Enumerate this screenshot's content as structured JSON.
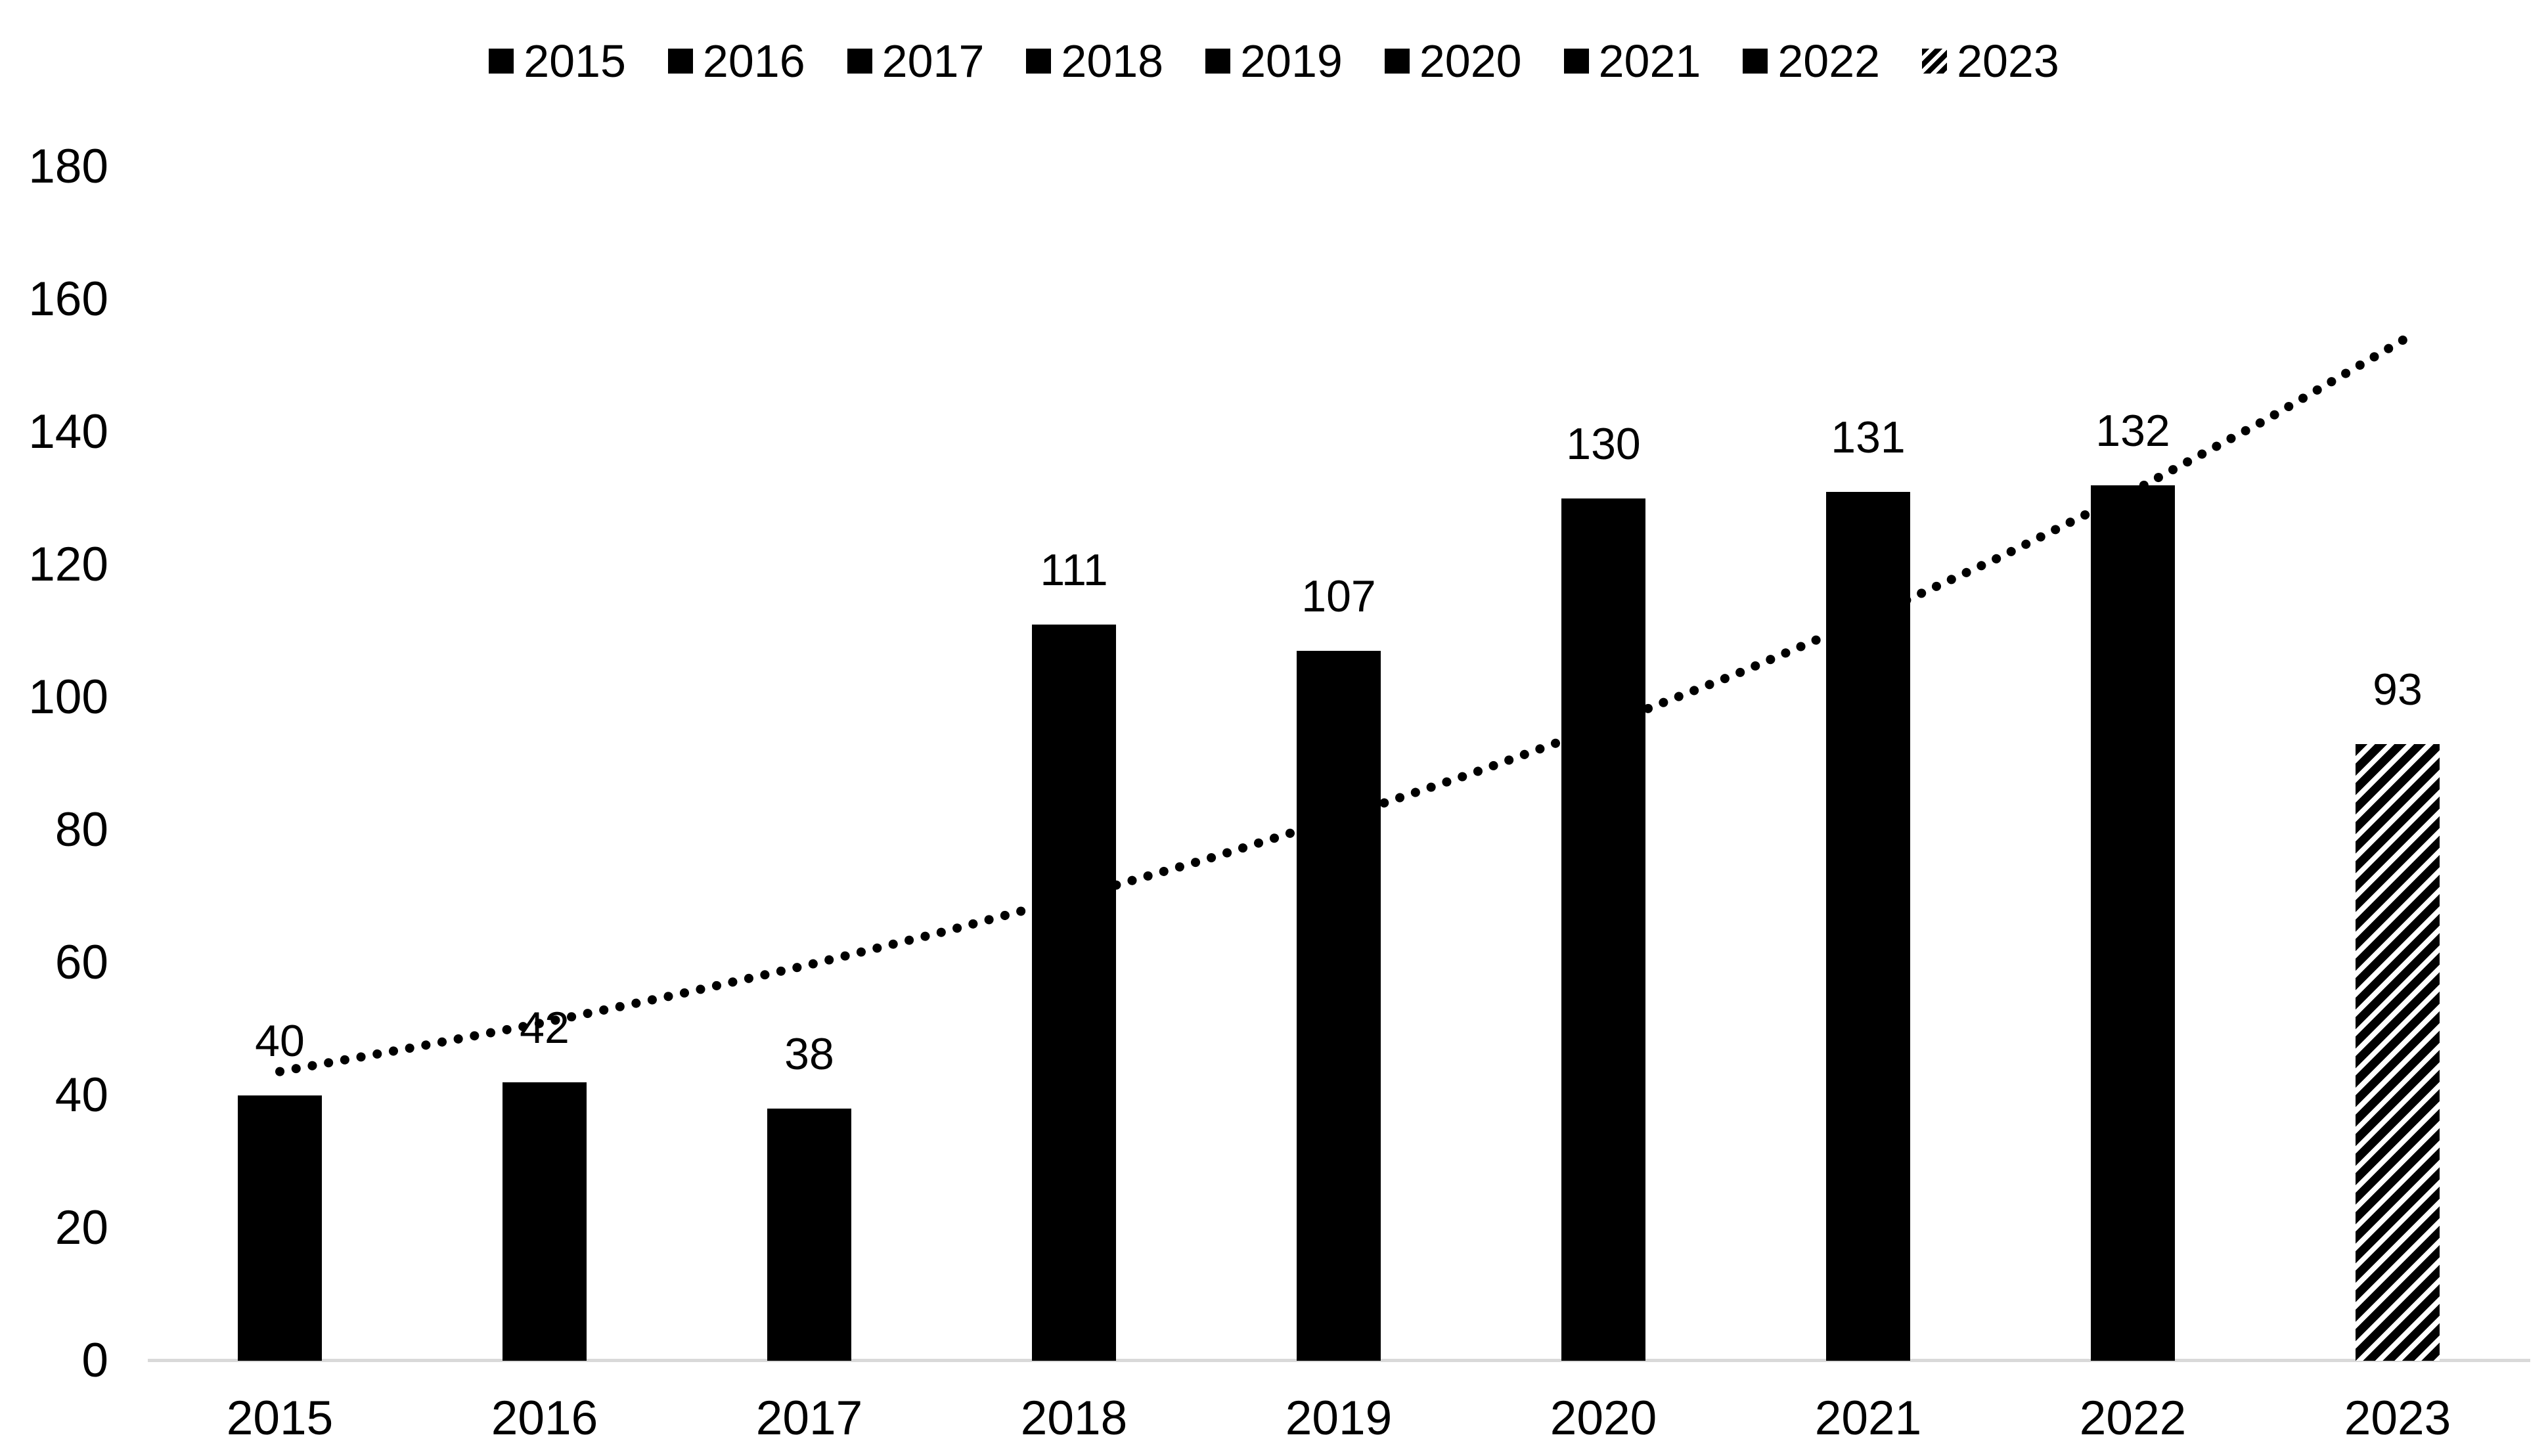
{
  "chart_data": {
    "type": "bar",
    "title": "",
    "xlabel": "",
    "ylabel": "",
    "categories": [
      "2015",
      "2016",
      "2017",
      "2018",
      "2019",
      "2020",
      "2021",
      "2022",
      "2023"
    ],
    "values": [
      40,
      42,
      38,
      111,
      107,
      130,
      131,
      132,
      93
    ],
    "bar_color": "#000000",
    "hatch_category": "2023",
    "hatch_style": "diagonal-stripes",
    "ylim": [
      0,
      180
    ],
    "yticks": [
      0,
      20,
      40,
      60,
      80,
      100,
      120,
      140,
      160,
      180
    ],
    "grid": false,
    "legend_position": "top",
    "axis_line_color": "#d9d9d9",
    "trendline": {
      "style": "dotted",
      "color": "#000000",
      "t": [
        0,
        0.5,
        1,
        1.5,
        2,
        2.5,
        3,
        3.5,
        4,
        4.5,
        5,
        5.5,
        6,
        6.5,
        7,
        7.5,
        8,
        8.05
      ],
      "values": [
        43.6,
        47.2,
        51.0,
        55.2,
        59.7,
        64.6,
        69.9,
        75.6,
        81.8,
        88.5,
        95.7,
        103.5,
        112.0,
        121.2,
        131.1,
        141.8,
        153.4,
        154.6
      ]
    }
  },
  "legend": {
    "items": [
      {
        "label": "2015",
        "marker": "solid"
      },
      {
        "label": "2016",
        "marker": "solid"
      },
      {
        "label": "2017",
        "marker": "solid"
      },
      {
        "label": "2018",
        "marker": "solid"
      },
      {
        "label": "2019",
        "marker": "solid"
      },
      {
        "label": "2020",
        "marker": "solid"
      },
      {
        "label": "2021",
        "marker": "solid"
      },
      {
        "label": "2022",
        "marker": "solid"
      },
      {
        "label": "2023",
        "marker": "hatched"
      }
    ]
  },
  "y_axis": {
    "tick_labels": [
      "0",
      "20",
      "40",
      "60",
      "80",
      "100",
      "120",
      "140",
      "160",
      "180"
    ]
  },
  "x_axis": {
    "tick_labels": [
      "2015",
      "2016",
      "2017",
      "2018",
      "2019",
      "2020",
      "2021",
      "2022",
      "2023"
    ]
  },
  "data_labels": [
    "40",
    "42",
    "38",
    "111",
    "107",
    "130",
    "131",
    "132",
    "93"
  ]
}
